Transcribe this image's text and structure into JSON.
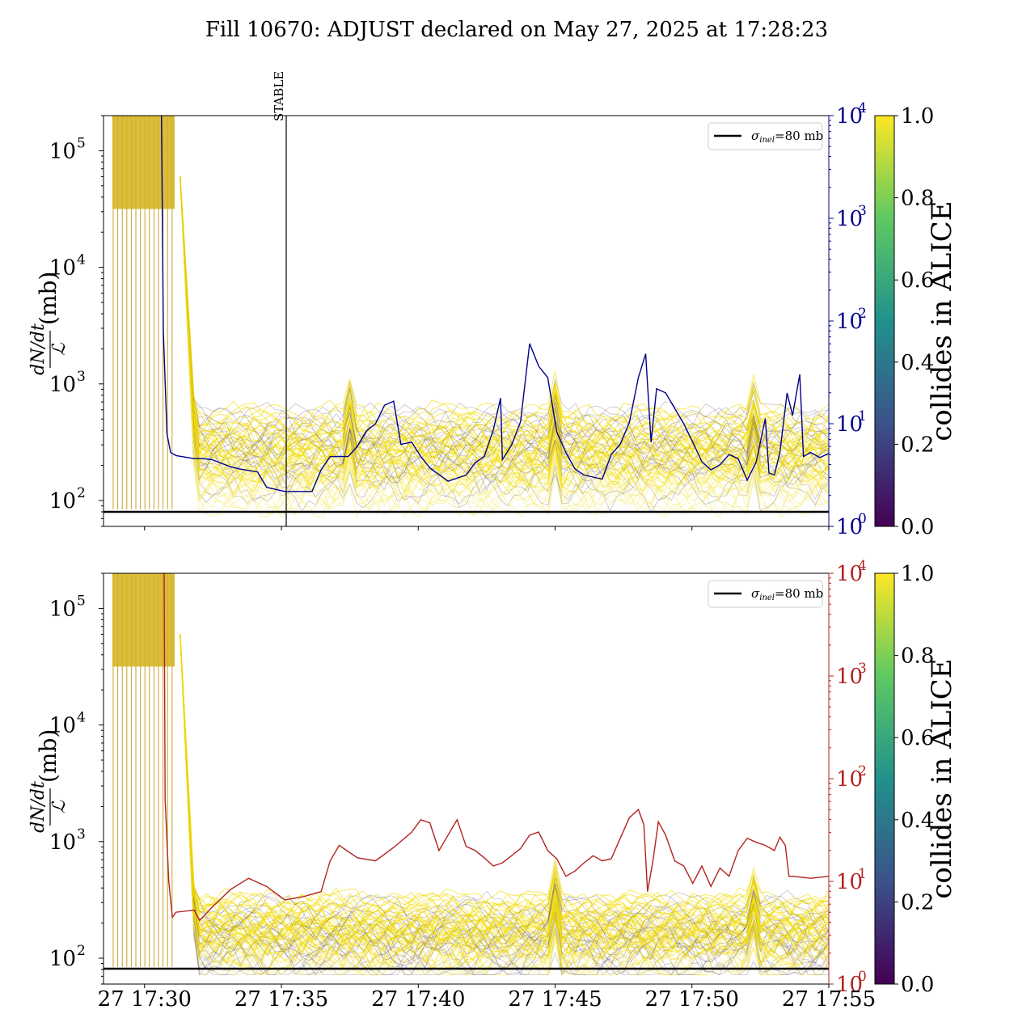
{
  "title": "Fill 10670: ADJUST declared on May 27, 2025 at 17:28:23",
  "colors": {
    "top_right_axis": "#00008b",
    "bottom_right_axis": "#b22222",
    "threshold": "#000000",
    "bundle_bright": "#f5e10a",
    "bundle_dark": "#5b4a6b",
    "viridis": [
      "#440154",
      "#3b528b",
      "#21918c",
      "#5ec962",
      "#fde725"
    ]
  },
  "chart_data": [
    {
      "type": "line",
      "panel": "top",
      "x_range": [
        "27 17:28:30",
        "27 17:55:00"
      ],
      "xtick_labels": [],
      "ylabel": {
        "numerator": "dN/dt",
        "denominator": "ℒ",
        "suffix": "(mb)"
      },
      "left_axis": {
        "scale": "log",
        "range": [
          60,
          200000
        ],
        "tick_base": "10",
        "tick_exponents": [
          "2",
          "3",
          "4",
          "5"
        ]
      },
      "right_axis": {
        "scale": "log",
        "range": [
          1,
          10000
        ],
        "color": "#00008b",
        "tick_base": "10",
        "tick_exponents": [
          "0",
          "1",
          "2",
          "3",
          "4"
        ]
      },
      "annotation": {
        "label": "STABLE",
        "x": "27 17:35:05"
      },
      "legend": {
        "label_symbol": "σ",
        "label_sub": "inel",
        "label_value": "=80 mb",
        "position": "top-right"
      },
      "threshold_y": 80,
      "colorbar": {
        "label": "collides in ALICE",
        "range": [
          0,
          1
        ],
        "tick_labels": [
          "0.0",
          "0.2",
          "0.4",
          "0.6",
          "0.8",
          "1.0"
        ]
      },
      "right_series": {
        "axis": "right",
        "points": [
          [
            0,
            40
          ],
          [
            0.6,
            39
          ],
          [
            1.3,
            39.5
          ],
          [
            2.1,
            38
          ],
          [
            2.7,
            37
          ],
          [
            3.0,
            15
          ],
          [
            3.1,
            6
          ],
          [
            3.3,
            1.9
          ],
          [
            3.5,
            0.9
          ],
          [
            3.7,
            0.72
          ],
          [
            4.0,
            0.69
          ],
          [
            5.0,
            0.66
          ],
          [
            5.5,
            0.66
          ],
          [
            6.0,
            0.65
          ],
          [
            7.0,
            0.58
          ],
          [
            7.5,
            0.56
          ],
          [
            8.5,
            0.53
          ],
          [
            9.0,
            0.38
          ],
          [
            10.0,
            0.34
          ],
          [
            11.5,
            0.34
          ],
          [
            12.0,
            0.55
          ],
          [
            12.5,
            0.68
          ],
          [
            13.5,
            0.68
          ],
          [
            14.0,
            0.78
          ],
          [
            14.5,
            0.93
          ],
          [
            15.0,
            1.0
          ],
          [
            15.5,
            1.18
          ],
          [
            16.0,
            1.22
          ],
          [
            16.4,
            0.8
          ],
          [
            17.0,
            0.82
          ],
          [
            17.5,
            0.68
          ],
          [
            18.0,
            0.57
          ],
          [
            19.0,
            0.44
          ],
          [
            20.0,
            0.5
          ],
          [
            20.5,
            0.62
          ],
          [
            21.0,
            0.68
          ],
          [
            21.5,
            0.94
          ],
          [
            21.9,
            1.25
          ],
          [
            22.0,
            0.65
          ],
          [
            22.5,
            0.79
          ],
          [
            23.0,
            1.02
          ],
          [
            23.5,
            1.78
          ],
          [
            24.0,
            1.56
          ],
          [
            24.5,
            1.45
          ],
          [
            25.0,
            0.92
          ],
          [
            25.5,
            0.72
          ],
          [
            26.0,
            0.56
          ],
          [
            26.5,
            0.5
          ],
          [
            27.0,
            0.48
          ],
          [
            27.5,
            0.46
          ],
          [
            28.0,
            0.7
          ],
          [
            28.5,
            0.8
          ],
          [
            29.0,
            1.01
          ],
          [
            29.5,
            1.45
          ],
          [
            29.9,
            1.68
          ],
          [
            30.2,
            0.82
          ],
          [
            30.5,
            1.34
          ],
          [
            31.0,
            1.3
          ],
          [
            31.5,
            1.15
          ],
          [
            32.0,
            1.0
          ],
          [
            32.5,
            0.82
          ],
          [
            33.0,
            0.63
          ],
          [
            33.5,
            0.55
          ],
          [
            34.0,
            0.6
          ],
          [
            34.5,
            0.7
          ],
          [
            35.0,
            0.66
          ],
          [
            35.5,
            0.45
          ],
          [
            36.0,
            0.63
          ],
          [
            36.5,
            1.05
          ],
          [
            36.7,
            0.52
          ],
          [
            37.0,
            0.5
          ],
          [
            37.3,
            0.72
          ],
          [
            37.7,
            1.3
          ],
          [
            38.0,
            1.08
          ],
          [
            38.4,
            1.48
          ],
          [
            38.6,
            0.68
          ],
          [
            39.0,
            0.72
          ],
          [
            39.5,
            0.67
          ],
          [
            40.0,
            0.71
          ]
        ]
      },
      "bundle_y_bands": [
        "~100–600 after 17:31",
        "above 10^5 before 17:31"
      ]
    },
    {
      "type": "line",
      "panel": "bottom",
      "x_range": [
        "27 17:28:30",
        "27 17:55:00"
      ],
      "xtick_labels": [
        "27 17:30",
        "27 17:35",
        "27 17:40",
        "27 17:45",
        "27 17:50",
        "27 17:55"
      ],
      "ylabel": {
        "numerator": "dN/dt",
        "denominator": "ℒ",
        "suffix": "(mb)"
      },
      "left_axis": {
        "scale": "log",
        "range": [
          60,
          200000
        ],
        "tick_base": "10",
        "tick_exponents": [
          "2",
          "3",
          "4",
          "5"
        ]
      },
      "right_axis": {
        "scale": "log",
        "range": [
          1,
          10000
        ],
        "color": "#b22222",
        "tick_base": "10",
        "tick_exponents": [
          "0",
          "1",
          "2",
          "3",
          "4"
        ]
      },
      "legend": {
        "label_symbol": "σ",
        "label_sub": "inel",
        "label_value": "=80 mb",
        "position": "top-right"
      },
      "threshold_y": 80,
      "colorbar": {
        "label": "collides in ALICE",
        "range": [
          0,
          1
        ],
        "tick_labels": [
          "0.0",
          "0.2",
          "0.4",
          "0.6",
          "0.8",
          "1.0"
        ]
      },
      "right_series": {
        "axis": "right",
        "points": [
          [
            0,
            30
          ],
          [
            0.5,
            28
          ],
          [
            1.5,
            32
          ],
          [
            2.5,
            33
          ],
          [
            3.0,
            24
          ],
          [
            3.2,
            10
          ],
          [
            3.4,
            1.8
          ],
          [
            3.6,
            1.0
          ],
          [
            3.8,
            0.65
          ],
          [
            4.0,
            0.7
          ],
          [
            5.0,
            0.72
          ],
          [
            5.3,
            0.62
          ],
          [
            6.0,
            0.75
          ],
          [
            7.0,
            0.92
          ],
          [
            8.0,
            1.03
          ],
          [
            9.0,
            0.95
          ],
          [
            10.0,
            0.82
          ],
          [
            11.0,
            0.85
          ],
          [
            12.0,
            0.9
          ],
          [
            12.5,
            1.2
          ],
          [
            13.0,
            1.35
          ],
          [
            14.0,
            1.23
          ],
          [
            15.0,
            1.2
          ],
          [
            16.0,
            1.33
          ],
          [
            17.0,
            1.48
          ],
          [
            17.5,
            1.6
          ],
          [
            18.0,
            1.57
          ],
          [
            18.5,
            1.3
          ],
          [
            19.0,
            1.45
          ],
          [
            19.5,
            1.6
          ],
          [
            20.0,
            1.34
          ],
          [
            20.5,
            1.3
          ],
          [
            21.0,
            1.23
          ],
          [
            21.5,
            1.15
          ],
          [
            22.0,
            1.18
          ],
          [
            22.5,
            1.25
          ],
          [
            23.0,
            1.32
          ],
          [
            23.5,
            1.45
          ],
          [
            24.0,
            1.48
          ],
          [
            24.5,
            1.3
          ],
          [
            25.0,
            1.22
          ],
          [
            25.5,
            1.05
          ],
          [
            26.0,
            1.1
          ],
          [
            26.5,
            1.18
          ],
          [
            27.0,
            1.25
          ],
          [
            27.5,
            1.2
          ],
          [
            28.0,
            1.22
          ],
          [
            28.5,
            1.42
          ],
          [
            29.0,
            1.62
          ],
          [
            29.5,
            1.7
          ],
          [
            29.8,
            1.55
          ],
          [
            30.0,
            0.9
          ],
          [
            30.3,
            1.2
          ],
          [
            30.6,
            1.58
          ],
          [
            31.0,
            1.45
          ],
          [
            31.5,
            1.2
          ],
          [
            32.0,
            1.15
          ],
          [
            32.5,
            0.98
          ],
          [
            33.0,
            1.15
          ],
          [
            33.5,
            0.95
          ],
          [
            34.0,
            1.13
          ],
          [
            34.5,
            1.05
          ],
          [
            35.0,
            1.3
          ],
          [
            35.5,
            1.42
          ],
          [
            36.0,
            1.38
          ],
          [
            36.5,
            1.35
          ],
          [
            37.0,
            1.3
          ],
          [
            37.3,
            1.43
          ],
          [
            37.6,
            1.35
          ],
          [
            37.8,
            1.05
          ],
          [
            38.0,
            1.05
          ],
          [
            39.0,
            1.03
          ],
          [
            40.0,
            1.05
          ]
        ]
      },
      "bundle_y_bands": [
        "~100–300 after 17:31",
        "above 10^5 before 17:31"
      ]
    }
  ]
}
